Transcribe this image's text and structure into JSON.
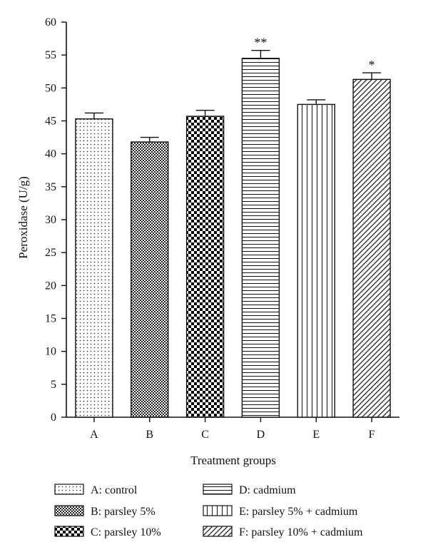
{
  "chart_data": {
    "type": "bar",
    "ylabel": "Peroxidase (U/g)",
    "xlabel": "Treatment groups",
    "ylim": [
      0,
      60
    ],
    "yticks": [
      0,
      5,
      10,
      15,
      20,
      25,
      30,
      35,
      40,
      45,
      50,
      55,
      60
    ],
    "categories": [
      "A",
      "B",
      "C",
      "D",
      "E",
      "F"
    ],
    "values": [
      45.3,
      41.8,
      45.7,
      54.5,
      47.5,
      51.3
    ],
    "errors": [
      0.9,
      0.7,
      0.9,
      1.2,
      0.7,
      1.0
    ],
    "significance": [
      "",
      "",
      "",
      "**",
      "",
      "*"
    ],
    "patterns": [
      "dots",
      "small-checker",
      "large-checker",
      "horizontal-lines",
      "vertical-lines",
      "diagonal-lines"
    ],
    "legend": [
      {
        "label": "A: control",
        "pattern": "dots"
      },
      {
        "label": "B: parsley 5%",
        "pattern": "small-checker"
      },
      {
        "label": "C: parsley 10%",
        "pattern": "large-checker"
      },
      {
        "label": "D: cadmium",
        "pattern": "horizontal-lines"
      },
      {
        "label": "E: parsley 5% + cadmium",
        "pattern": "vertical-lines"
      },
      {
        "label": "F: parsley 10% + cadmium",
        "pattern": "diagonal-lines"
      }
    ],
    "legend_placement": "bottom",
    "grid": false
  }
}
